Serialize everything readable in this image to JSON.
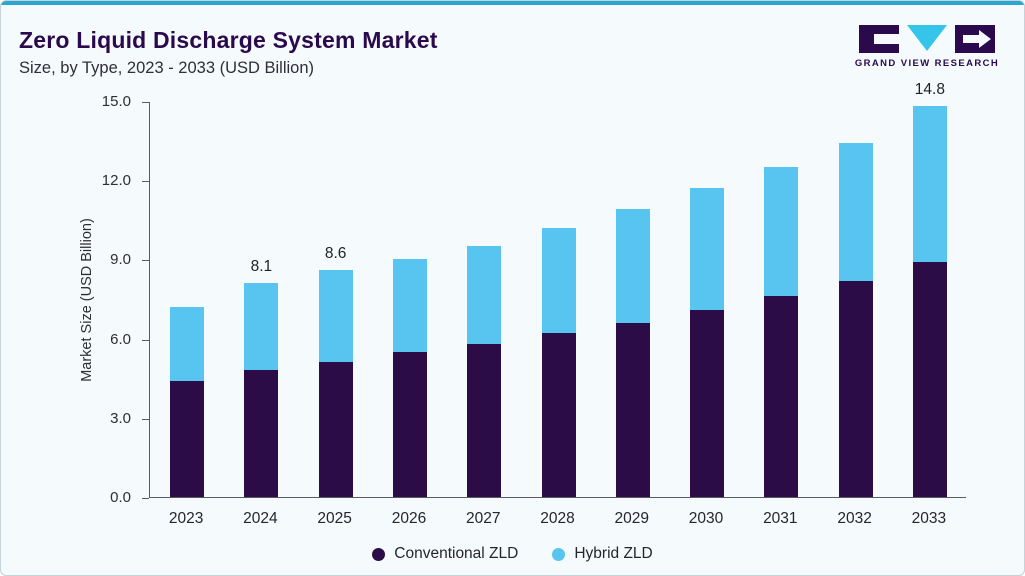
{
  "branding": {
    "logo_text": "GRAND VIEW RESEARCH"
  },
  "colors": {
    "accent_line": "#2BA6CF",
    "brand_purple": "#2A0A4D",
    "logo_cyan": "#35C4EA",
    "background": "#F5FAFC"
  },
  "chart_data": {
    "type": "bar",
    "stacked": true,
    "title": "Zero Liquid Discharge System Market",
    "subtitle": "Size, by Type, 2023 - 2033 (USD Billion)",
    "ylabel": "Market Size (USD Billion)",
    "categories": [
      "2023",
      "2024",
      "2025",
      "2026",
      "2027",
      "2028",
      "2029",
      "2030",
      "2031",
      "2032",
      "2033"
    ],
    "series": [
      {
        "name": "Conventional ZLD",
        "color": "#2B0C47",
        "values": [
          4.4,
          4.8,
          5.1,
          5.5,
          5.8,
          6.2,
          6.6,
          7.1,
          7.6,
          8.2,
          8.9
        ]
      },
      {
        "name": "Hybrid ZLD",
        "color": "#58C4F0",
        "values": [
          2.8,
          3.3,
          3.5,
          3.5,
          3.7,
          4.0,
          4.3,
          4.6,
          4.9,
          5.2,
          5.9
        ]
      }
    ],
    "totals": [
      7.2,
      8.1,
      8.6,
      9.0,
      9.5,
      10.2,
      10.9,
      11.7,
      12.5,
      13.4,
      14.8
    ],
    "data_labels": {
      "2024": "8.1",
      "2025": "8.6",
      "2033": "14.8"
    },
    "ylim": [
      0,
      15
    ],
    "yticks": [
      "0.0",
      "3.0",
      "6.0",
      "9.0",
      "12.0",
      "15.0"
    ],
    "legend_position": "bottom",
    "grid": false
  }
}
